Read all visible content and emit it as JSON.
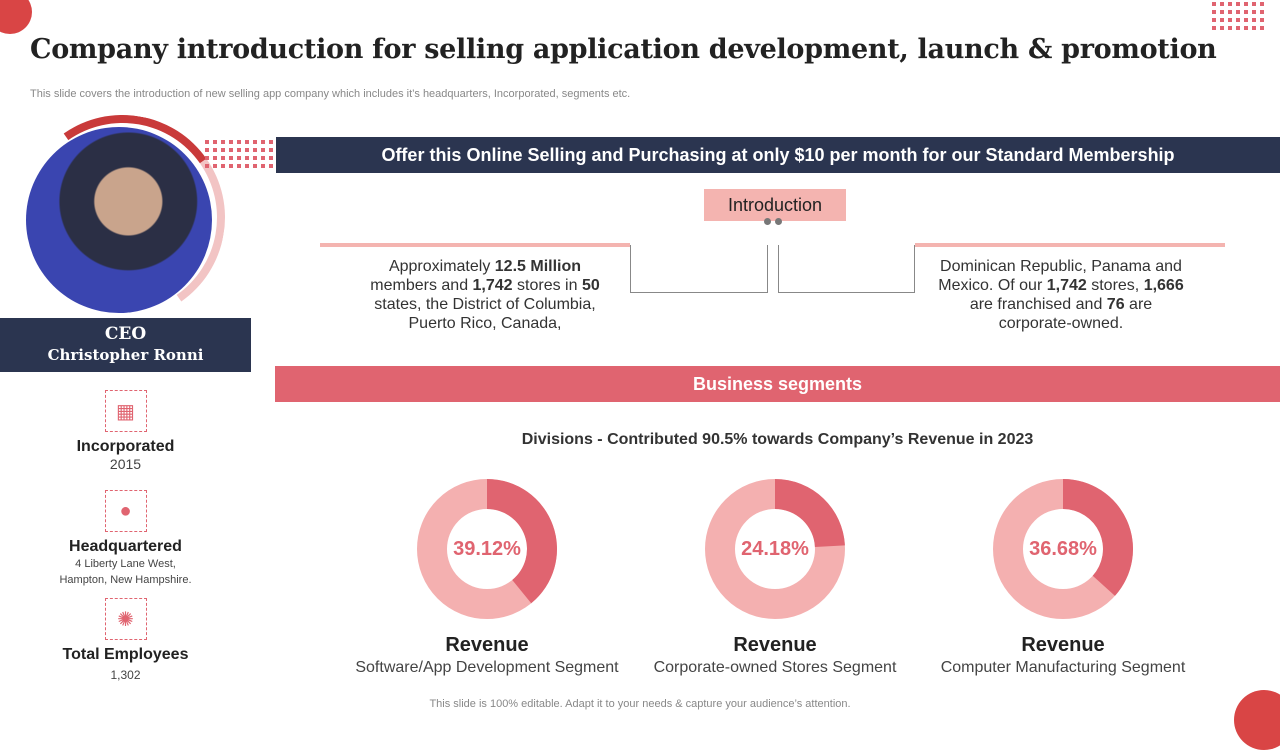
{
  "title": "Company introduction for selling application development, launch & promotion",
  "subtitle": "This slide covers the introduction of new selling app company which includes it’s headquarters, Incorporated, segments etc.",
  "ceo": {
    "role": "CEO",
    "name": "Christopher Ronni"
  },
  "info": [
    {
      "icon": "calendar-icon",
      "label": "Incorporated",
      "value": "2015"
    },
    {
      "icon": "location-pin-icon",
      "label": "Headquartered",
      "value_lines": [
        "4 Liberty Lane West,",
        "Hampton, New Hampshire."
      ]
    },
    {
      "icon": "team-icon",
      "label": "Total Employees",
      "value": "1,302"
    }
  ],
  "banner": "Offer this Online Selling and Purchasing at only $10 per month for our Standard Membership",
  "introduction": {
    "label": "Introduction",
    "left_text": [
      "Approximately ",
      "12.5 Million",
      " members and ",
      "1,742",
      " stores in ",
      "50",
      " states, the District of Columbia, Puerto Rico, Canada,"
    ],
    "right_text": [
      "Dominican Republic, Panama and Mexico. Of our ",
      "1,742",
      " stores, ",
      "1,666",
      " are franchised and ",
      "76",
      " are corporate-owned."
    ]
  },
  "segments_header": "Business segments",
  "divisions_text": "Divisions  - Contributed 90.5% towards Company’s Revenue in 2023",
  "colors": {
    "accent": "#e06470",
    "light": "#f4b0b0",
    "navy": "#2b3550"
  },
  "chart_data": {
    "type": "pie",
    "series": [
      {
        "name": "Software/App Development Segment",
        "value": 39.12,
        "label": "39.12%",
        "title": "Revenue"
      },
      {
        "name": "Corporate-owned Stores Segment",
        "value": 24.18,
        "label": "24.18%",
        "title": "Revenue"
      },
      {
        "name": "Computer Manufacturing  Segment",
        "value": 36.68,
        "label": "36.68%",
        "title": "Revenue"
      }
    ]
  },
  "footer": "This slide is 100% editable. Adapt it to your needs & capture your audience’s attention."
}
